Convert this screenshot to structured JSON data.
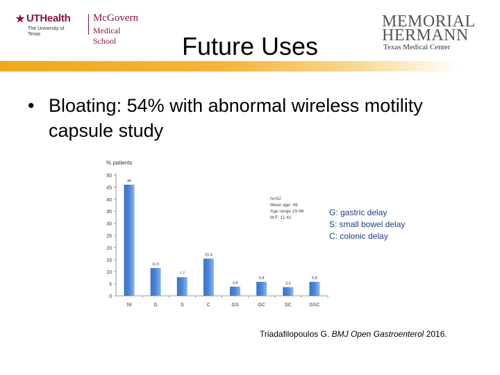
{
  "logos": {
    "left_ut": "UTHealth",
    "left_ut_sub": "The University of Texas",
    "left_mcgovern": "McGovern",
    "left_medical_school": "Medical School",
    "right_line1": "MEMORIAL",
    "right_line2": "HERMANN",
    "right_line3": "Texas Medical Center"
  },
  "slide": {
    "title": "Future Uses",
    "bullet_mark": "•",
    "bullet_text": "Bloating: 54% with abnormal wireless motility capsule study"
  },
  "chart_data": {
    "type": "bar",
    "ylabel": "% patients",
    "categories": [
      "Nl",
      "G",
      "S",
      "C",
      "GS",
      "GC",
      "SC",
      "GSC"
    ],
    "values": [
      46,
      11.5,
      7.7,
      15.4,
      3.8,
      5.8,
      3.6,
      5.8
    ],
    "value_labels": [
      "46",
      "11.5",
      "7.7",
      "15.4",
      "3.8",
      "5.8",
      "3.6",
      "5.8"
    ],
    "ylim": [
      0,
      50
    ],
    "yticks": [
      "0",
      "5",
      "10",
      "15",
      "20",
      "25",
      "30",
      "35",
      "40",
      "45",
      "50"
    ],
    "bar_color": "#4a86d8",
    "annotation": [
      "N=52",
      "Mean age: 49",
      "Age range 19-86",
      "M:F: 11:41"
    ]
  },
  "legend": {
    "lines": [
      "G: gastric delay",
      "S: small bowel delay",
      "C: colonic delay"
    ]
  },
  "citation": {
    "authors": "Triadafilopoulos G.",
    "journal": "BMJ Open Gastroenterol",
    "year": "2016."
  }
}
